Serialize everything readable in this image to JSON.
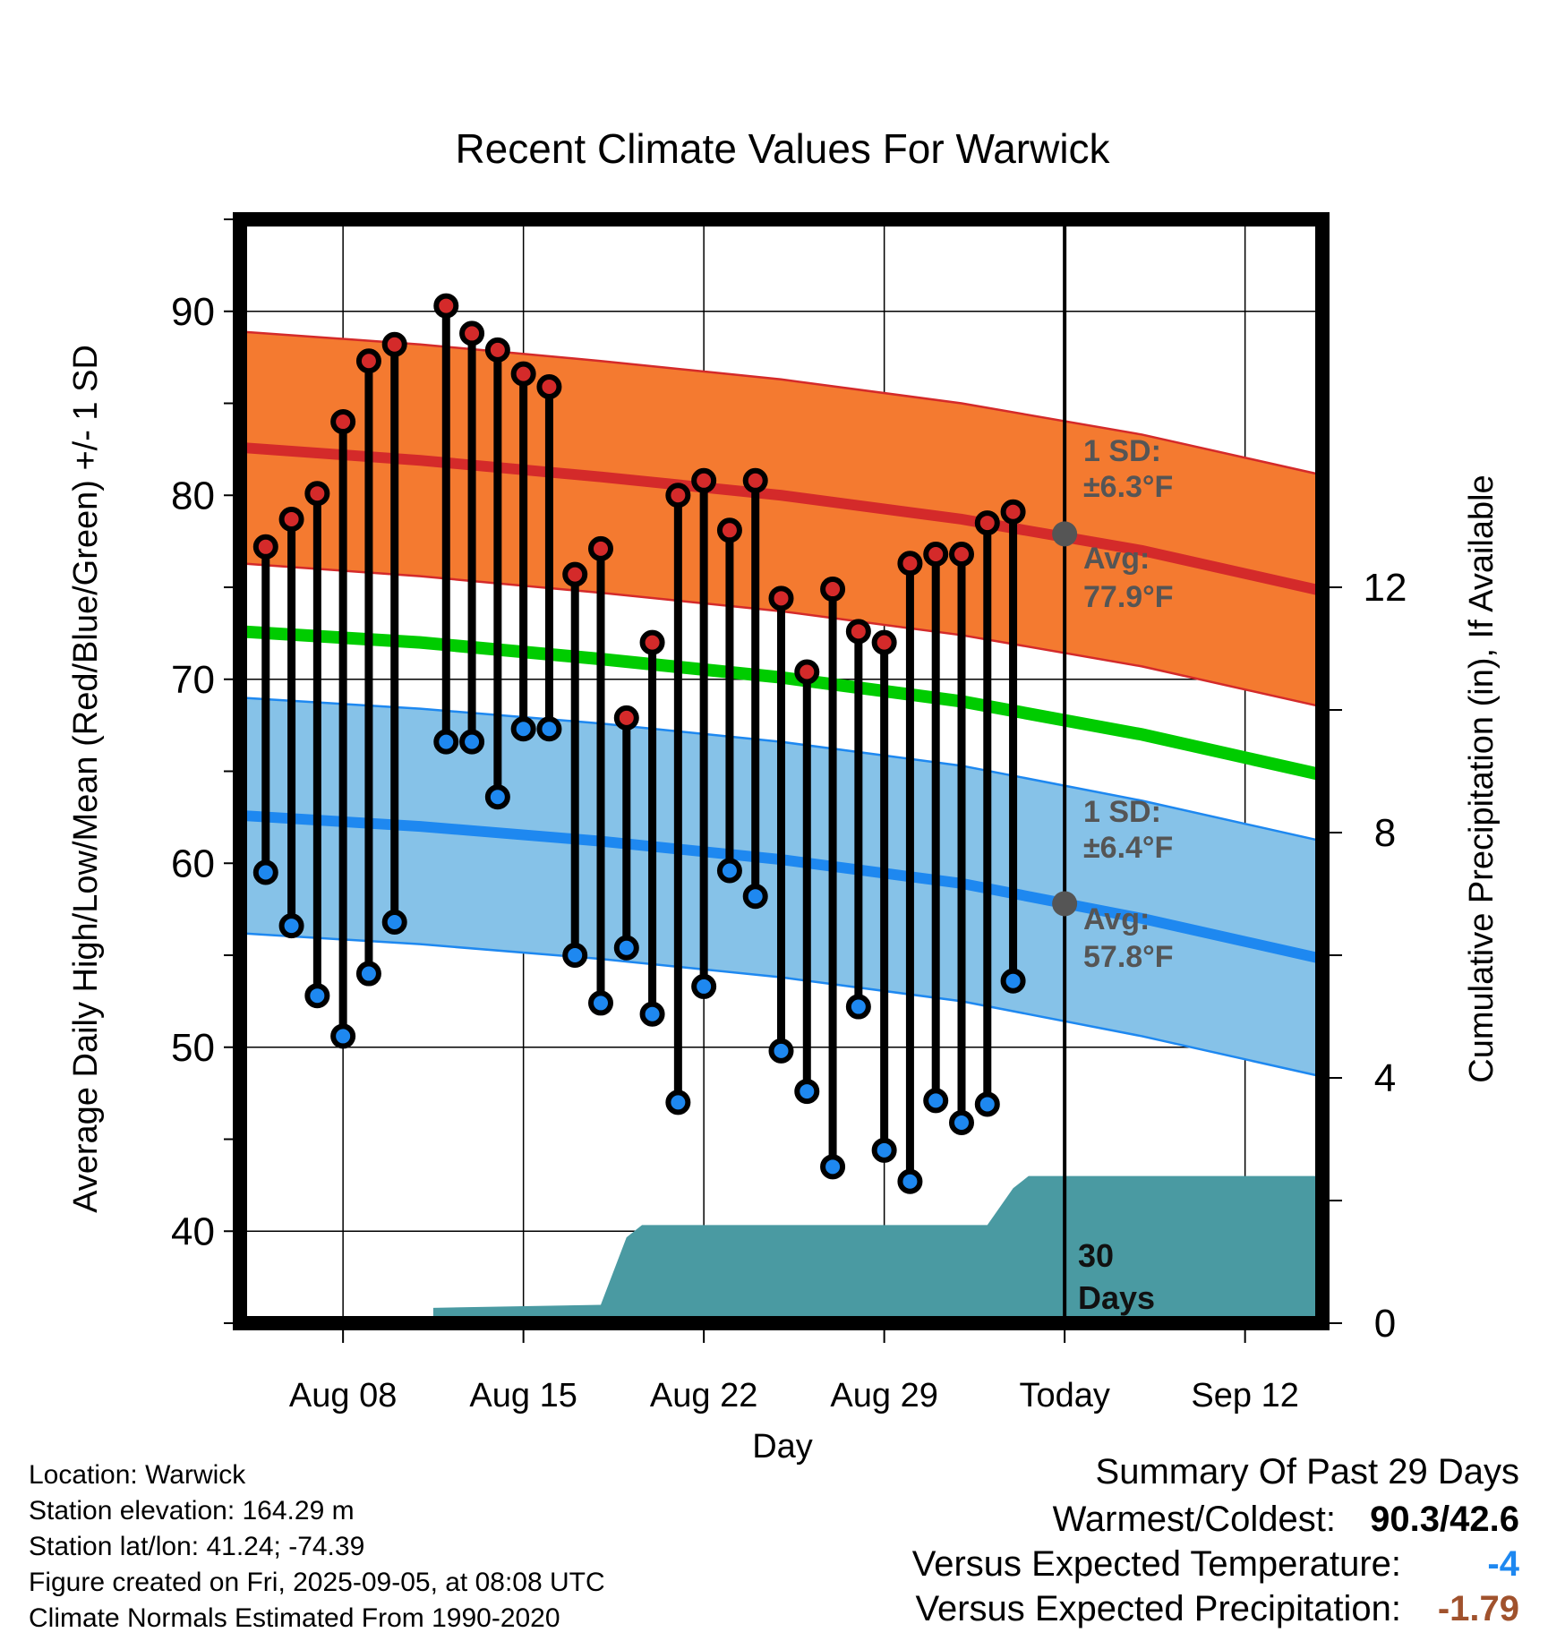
{
  "chart_data": {
    "type": "line",
    "title": "Recent Climate Values For Warwick",
    "xlabel": "Day",
    "ylabel": "Average Daily High/Low/Mean (Red/Blue/Green) +/- 1 SD",
    "y2label": "Cumulative Precipitation (in), If Available",
    "ylim": [
      35,
      95
    ],
    "y_ticks": [
      40,
      50,
      60,
      70,
      80,
      90
    ],
    "y2lim": [
      0,
      18
    ],
    "y2_ticks": [
      0,
      4,
      8,
      12
    ],
    "x_range_days": [
      0,
      42
    ],
    "x_ticks": [
      {
        "day": 4,
        "label": "Aug 08"
      },
      {
        "day": 11,
        "label": "Aug 15"
      },
      {
        "day": 18,
        "label": "Aug 22"
      },
      {
        "day": 25,
        "label": "Aug 29"
      },
      {
        "day": 32,
        "label": "Today"
      },
      {
        "day": 39,
        "label": "Sep 12"
      }
    ],
    "daily_high": [
      {
        "day": 1,
        "value": 77.2
      },
      {
        "day": 2,
        "value": 78.7
      },
      {
        "day": 3,
        "value": 80.1
      },
      {
        "day": 4,
        "value": 84.0
      },
      {
        "day": 5,
        "value": 87.3
      },
      {
        "day": 6,
        "value": 88.2
      },
      {
        "day": 8,
        "value": 90.3
      },
      {
        "day": 9,
        "value": 88.8
      },
      {
        "day": 10,
        "value": 87.9
      },
      {
        "day": 11,
        "value": 86.6
      },
      {
        "day": 12,
        "value": 85.9
      },
      {
        "day": 13,
        "value": 75.7
      },
      {
        "day": 14,
        "value": 77.1
      },
      {
        "day": 15,
        "value": 67.9
      },
      {
        "day": 16,
        "value": 72.0
      },
      {
        "day": 17,
        "value": 80.0
      },
      {
        "day": 18,
        "value": 80.8
      },
      {
        "day": 19,
        "value": 78.1
      },
      {
        "day": 20,
        "value": 80.8
      },
      {
        "day": 21,
        "value": 74.4
      },
      {
        "day": 22,
        "value": 70.4
      },
      {
        "day": 23,
        "value": 74.9
      },
      {
        "day": 24,
        "value": 72.6
      },
      {
        "day": 25,
        "value": 72.0
      },
      {
        "day": 26,
        "value": 76.3
      },
      {
        "day": 27,
        "value": 76.8
      },
      {
        "day": 28,
        "value": 76.8
      },
      {
        "day": 29,
        "value": 78.5
      },
      {
        "day": 30,
        "value": 79.1
      }
    ],
    "daily_low": [
      {
        "day": 1,
        "value": 59.5
      },
      {
        "day": 2,
        "value": 56.6
      },
      {
        "day": 3,
        "value": 52.8
      },
      {
        "day": 4,
        "value": 50.6
      },
      {
        "day": 5,
        "value": 54.0
      },
      {
        "day": 6,
        "value": 56.8
      },
      {
        "day": 8,
        "value": 66.6
      },
      {
        "day": 9,
        "value": 66.6
      },
      {
        "day": 10,
        "value": 63.6
      },
      {
        "day": 11,
        "value": 67.3
      },
      {
        "day": 12,
        "value": 67.3
      },
      {
        "day": 13,
        "value": 55.0
      },
      {
        "day": 14,
        "value": 52.4
      },
      {
        "day": 15,
        "value": 55.4
      },
      {
        "day": 16,
        "value": 51.8
      },
      {
        "day": 17,
        "value": 47.0
      },
      {
        "day": 18,
        "value": 53.3
      },
      {
        "day": 19,
        "value": 59.6
      },
      {
        "day": 20,
        "value": 58.2
      },
      {
        "day": 21,
        "value": 49.8
      },
      {
        "day": 22,
        "value": 47.6
      },
      {
        "day": 23,
        "value": 43.5
      },
      {
        "day": 24,
        "value": 52.2
      },
      {
        "day": 25,
        "value": 44.4
      },
      {
        "day": 26,
        "value": 42.7
      },
      {
        "day": 27,
        "value": 47.1
      },
      {
        "day": 28,
        "value": 45.9
      },
      {
        "day": 29,
        "value": 46.9
      },
      {
        "day": 30,
        "value": 53.6
      }
    ],
    "normal_high": {
      "x": [
        0,
        7,
        14,
        21,
        28,
        35,
        42
      ],
      "mean": [
        82.6,
        81.9,
        81.0,
        80.0,
        78.7,
        77.0,
        74.8
      ],
      "sd": 6.3
    },
    "normal_low": {
      "x": [
        0,
        7,
        14,
        21,
        28,
        35,
        42
      ],
      "mean": [
        62.6,
        62.0,
        61.2,
        60.2,
        58.9,
        57.0,
        54.8
      ],
      "sd": 6.4
    },
    "normal_mean": {
      "x": [
        0,
        7,
        14,
        21,
        28,
        35,
        42
      ],
      "values": [
        72.6,
        72.0,
        71.1,
        70.1,
        68.8,
        67.0,
        64.8
      ]
    },
    "cumulative_precip": {
      "x": [
        0,
        7.5,
        7.5,
        14,
        15,
        15.6,
        16,
        29,
        30,
        30.6,
        42
      ],
      "values": [
        0,
        0,
        0.25,
        0.3,
        1.4,
        1.6,
        1.6,
        1.6,
        2.2,
        2.4,
        2.4
      ]
    },
    "today_day": 32,
    "today_mean_high": 77.9,
    "today_mean_low": 57.8,
    "annotations": {
      "high_sd_label": "1 SD:",
      "high_sd_value": "±6.3°F",
      "high_avg_label": "Avg:",
      "high_avg_value": "77.9°F",
      "low_sd_label": "1 SD:",
      "low_sd_value": "±6.4°F",
      "low_avg_label": "Avg:",
      "low_avg_value": "57.8°F",
      "days_line1": "30",
      "days_line2": "Days"
    },
    "colors": {
      "high_band": "#f47a30",
      "high_line": "#d42a2a",
      "low_band": "#86c2e8",
      "low_line": "#1e88f0",
      "mean_line": "#00cc00",
      "precip": "#4a9aa2",
      "high_dot": "#d42a2a",
      "low_dot": "#1e88f0",
      "annotation_text": "#555555",
      "today_dot": "#555555"
    }
  },
  "info": {
    "location": "Location: Warwick",
    "elevation": "Station elevation: 164.29 m",
    "latlon": "Station lat/lon: 41.24; -74.39",
    "created": "Figure created on Fri, 2025-09-05, at 08:08 UTC",
    "normals": "Climate Normals Estimated From 1990-2020"
  },
  "summary": {
    "title": "Summary Of Past 29 Days",
    "warm_cold_label": "Warmest/Coldest:",
    "warm_cold_value": "90.3/42.6",
    "temp_label": "Versus Expected Temperature:",
    "temp_value": "-4",
    "precip_label": "Versus Expected Precipitation:",
    "precip_value": "-1.79",
    "temp_value_color": "#1e88f0",
    "precip_value_color": "#a0522d"
  }
}
